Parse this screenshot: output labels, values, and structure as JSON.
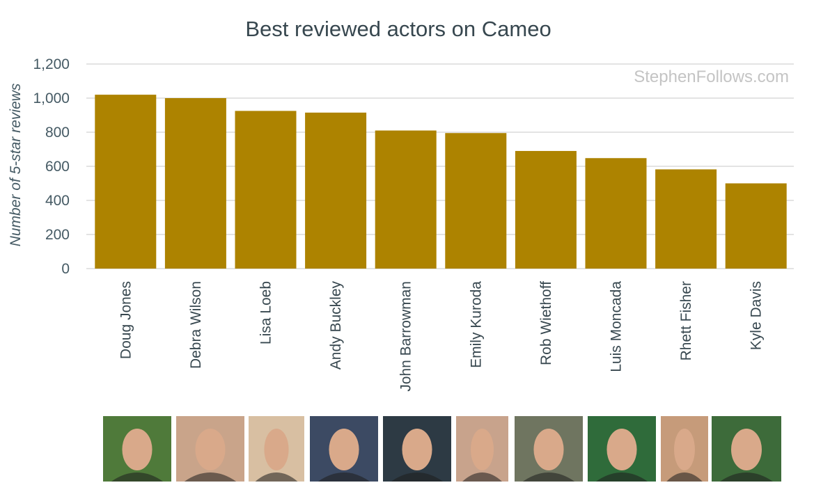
{
  "watermark": {
    "brand": "StephenFollows",
    "suffix": ".com"
  },
  "colors": {
    "bar": "#ad8300",
    "grid": "#dadada",
    "text": "#37474f"
  },
  "chart_data": {
    "type": "bar",
    "title": "Best reviewed actors on Cameo",
    "xlabel": "",
    "ylabel": "Number of 5-star reviews",
    "ylim": [
      0,
      1200
    ],
    "yticks": [
      0,
      200,
      400,
      600,
      800,
      1000,
      1200
    ],
    "ytick_labels": [
      "0",
      "200",
      "400",
      "600",
      "800",
      "1,000",
      "1,200"
    ],
    "grid": true,
    "legend": "none",
    "categories": [
      "Doug Jones",
      "Debra Wilson",
      "Lisa Loeb",
      "Andy Buckley",
      "John Barrowman",
      "Emily Kuroda",
      "Rob Wiethoff",
      "Luis Moncada",
      "Rhett Fisher",
      "Kyle Davis"
    ],
    "values": [
      1020,
      1000,
      925,
      915,
      810,
      795,
      690,
      648,
      582,
      500
    ]
  },
  "photos": [
    {
      "name": "Doug Jones",
      "color": "#4f7a3a"
    },
    {
      "name": "Debra Wilson",
      "color": "#c9a48a"
    },
    {
      "name": "Lisa Loeb",
      "color": "#d8bfa2"
    },
    {
      "name": "Andy Buckley",
      "color": "#3c4a63"
    },
    {
      "name": "John Barrowman",
      "color": "#2d3a44"
    },
    {
      "name": "Emily Kuroda",
      "color": "#c8a38c"
    },
    {
      "name": "Rob Wiethoff",
      "color": "#6f7560"
    },
    {
      "name": "Luis Moncada",
      "color": "#2f6b3a"
    },
    {
      "name": "Rhett Fisher",
      "color": "#c69b7a"
    },
    {
      "name": "Kyle Davis",
      "color": "#3d6b3a"
    }
  ]
}
